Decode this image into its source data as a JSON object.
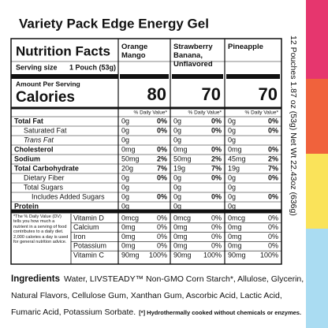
{
  "title": "Variety Pack Edge Energy Gel",
  "side_text": "12 Pouches 1.87 oz (53g) Net Wt 22.43oz (636g)",
  "label": {
    "heading": "Nutrition Facts",
    "serving_size_label": "Serving size",
    "serving_size": "1 Pouch (53g)",
    "amount_per_serving": "Amount Per Serving",
    "calories_label": "Calories",
    "daily_value_header": "% Daily Value*",
    "columns": [
      {
        "name": "Orange Mango",
        "calories": 80
      },
      {
        "name": "Strawberry Banana, Unflavored",
        "calories": 70
      },
      {
        "name": "Pineapple",
        "calories": 70
      }
    ],
    "nutrients": [
      {
        "label": "Total Fat",
        "values": [
          [
            "0g",
            "0%"
          ],
          [
            "0g",
            "0%"
          ],
          [
            "0g",
            "0%"
          ]
        ]
      },
      {
        "label": "Saturated Fat",
        "values": [
          [
            "0g",
            "0%"
          ],
          [
            "0g",
            "0%"
          ],
          [
            "0g",
            "0%"
          ]
        ]
      },
      {
        "label": "Trans Fat",
        "values": [
          [
            "0g"
          ],
          [
            "0g"
          ],
          [
            "0g"
          ]
        ]
      },
      {
        "label": "Cholesterol",
        "values": [
          [
            "0mg",
            "0%"
          ],
          [
            "0mg",
            "0%"
          ],
          [
            "0mg",
            "0%"
          ]
        ]
      },
      {
        "label": "Sodium",
        "values": [
          [
            "50mg",
            "2%"
          ],
          [
            "50mg",
            "2%"
          ],
          [
            "45mg",
            "2%"
          ]
        ]
      },
      {
        "label": "Total Carbohydrate",
        "values": [
          [
            "20g",
            "7%"
          ],
          [
            "19g",
            "7%"
          ],
          [
            "19g",
            "7%"
          ]
        ]
      },
      {
        "label": "Dietary Fiber",
        "values": [
          [
            "0g",
            "0%"
          ],
          [
            "0g",
            "0%"
          ],
          [
            "0g",
            "0%"
          ]
        ]
      },
      {
        "label": "Total Sugars",
        "values": [
          [
            "0g"
          ],
          [
            "0g"
          ],
          [
            "0g"
          ]
        ]
      },
      {
        "label": "Includes Added Sugars",
        "values": [
          [
            "0g",
            "0%"
          ],
          [
            "0g",
            "0%"
          ],
          [
            "0g",
            "0%"
          ]
        ]
      },
      {
        "label": "Protein",
        "values": [
          [
            "0g"
          ],
          [
            "0g"
          ],
          [
            "0g"
          ]
        ]
      }
    ],
    "vitamins": [
      {
        "label": "Vitamin D",
        "values": [
          [
            "0mcg",
            "0%"
          ],
          [
            "0mcg",
            "0%"
          ],
          [
            "0mcg",
            "0%"
          ]
        ]
      },
      {
        "label": "Calcium",
        "values": [
          [
            "0mg",
            "0%"
          ],
          [
            "0mg",
            "0%"
          ],
          [
            "0mg",
            "0%"
          ]
        ]
      },
      {
        "label": "Iron",
        "values": [
          [
            "0mg",
            "0%"
          ],
          [
            "0mg",
            "0%"
          ],
          [
            "0mg",
            "0%"
          ]
        ]
      },
      {
        "label": "Potassium",
        "values": [
          [
            "0mg",
            "0%"
          ],
          [
            "0mg",
            "0%"
          ],
          [
            "0mg",
            "0%"
          ]
        ]
      },
      {
        "label": "Vitamin C",
        "values": [
          [
            "90mg",
            "100%"
          ],
          [
            "90mg",
            "100%"
          ],
          [
            "90mg",
            "100%"
          ]
        ]
      }
    ],
    "footnote": "*The % Daily Value (DV) tells you how much a nutrient in a serving of food contributes to a daily diet. 2,000 calories a day is used for general nutrition advice."
  },
  "ingredients": {
    "heading": "Ingredients",
    "text": "Water, LIVSTEADY™ Non-GMO Corn Starch*, Allulose, Glycerin, Natural Flavors, Cellulose Gum, Xanthan Gum, Ascorbic Acid, Lactic Acid, Fumaric Acid, Potassium Sorbate.",
    "note": "[*] Hydrothermally cooked without chemicals or enzymes."
  }
}
